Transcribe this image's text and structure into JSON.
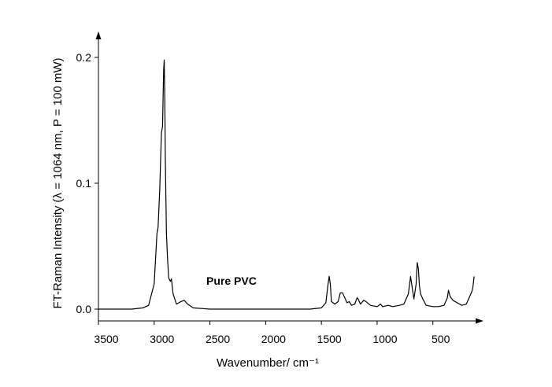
{
  "chart_data": {
    "type": "line",
    "xlabel": "Wavenumber/ cm⁻¹",
    "ylabel": "FT-Raman Intensity (λ = 1064 nm, P = 100 mW)",
    "annotation": "Pure PVC",
    "color": "#000000",
    "xlim": [
      3500,
      60
    ],
    "ylim": [
      -0.01,
      0.22
    ],
    "xticks": [
      3500,
      3000,
      2500,
      2000,
      1500,
      1000,
      500
    ],
    "yticks": [
      {
        "value": 0,
        "label": "0.0"
      },
      0.1,
      0.2
    ],
    "x": [
      3500,
      3200,
      3100,
      3050,
      3000,
      2975,
      2965,
      2950,
      2935,
      2925,
      2915,
      2910,
      2905,
      2900,
      2890,
      2880,
      2870,
      2855,
      2845,
      2830,
      2800,
      2760,
      2730,
      2700,
      2650,
      2500,
      2000,
      1600,
      1500,
      1460,
      1440,
      1430,
      1420,
      1410,
      1380,
      1350,
      1330,
      1310,
      1290,
      1270,
      1250,
      1230,
      1200,
      1180,
      1170,
      1150,
      1120,
      1100,
      1060,
      1000,
      970,
      950,
      900,
      860,
      800,
      760,
      720,
      700,
      690,
      670,
      650,
      640,
      630,
      620,
      610,
      590,
      560,
      500,
      450,
      400,
      370,
      360,
      345,
      320,
      280,
      240,
      200,
      170,
      150,
      140,
      130
    ],
    "values": [
      0,
      0,
      0.001,
      0.003,
      0.02,
      0.06,
      0.065,
      0.095,
      0.14,
      0.145,
      0.19,
      0.198,
      0.17,
      0.12,
      0.06,
      0.04,
      0.025,
      0.022,
      0.024,
      0.012,
      0.004,
      0.006,
      0.007,
      0.004,
      0.001,
      0,
      0,
      0,
      0.001,
      0.005,
      0.02,
      0.026,
      0.02,
      0.006,
      0.004,
      0.006,
      0.013,
      0.013,
      0.009,
      0.005,
      0.006,
      0.003,
      0.004,
      0.009,
      0.008,
      0.004,
      0.007,
      0.006,
      0.003,
      0.002,
      0.004,
      0.002,
      0.003,
      0.002,
      0.003,
      0.004,
      0.012,
      0.026,
      0.02,
      0.008,
      0.02,
      0.037,
      0.032,
      0.018,
      0.012,
      0.008,
      0.003,
      0.002,
      0.002,
      0.003,
      0.009,
      0.015,
      0.01,
      0.007,
      0.005,
      0.003,
      0.004,
      0.01,
      0.014,
      0.018,
      0.026
    ]
  }
}
